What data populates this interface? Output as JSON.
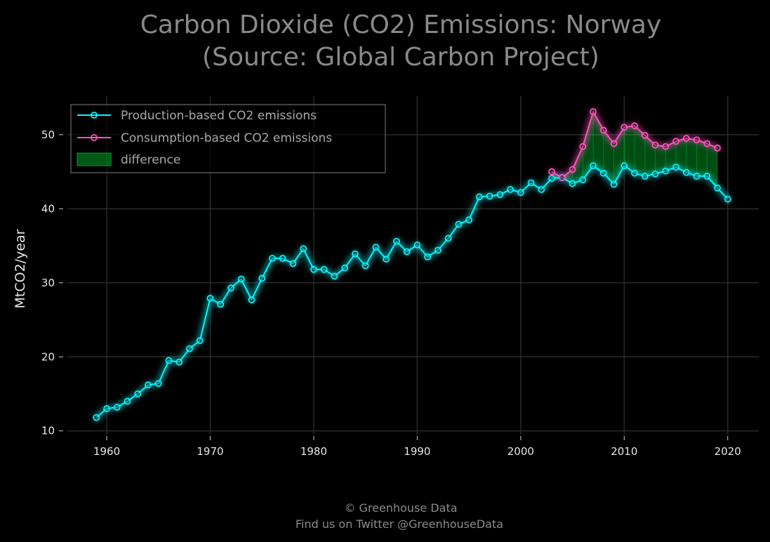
{
  "title_lines": [
    "Carbon Dioxide (CO2) Emissions: Norway",
    "(Source: Global Carbon Project)"
  ],
  "footer_lines": [
    "© Greenhouse Data",
    "Find us on Twitter @GreenhouseData"
  ],
  "colors": {
    "background": "#000000",
    "production": "#08f7fe",
    "consumption": "#fe53bb",
    "difference": "#00ff41",
    "grid": "#2a2a2a",
    "title": "#8a8a8a"
  },
  "chart_data": {
    "type": "line",
    "title": "Carbon Dioxide (CO2) Emissions: Norway\n(Source: Global Carbon Project)",
    "xlabel": "",
    "ylabel": "MtCO2/year",
    "xlim": [
      1956.2,
      2023.0
    ],
    "ylim": [
      9.5,
      55.2
    ],
    "xticks": [
      1960,
      1970,
      1980,
      1990,
      2000,
      2010,
      2020
    ],
    "yticks": [
      10,
      20,
      30,
      40,
      50
    ],
    "grid": true,
    "legend_position": "top-left",
    "series": [
      {
        "name": "Production-based CO2 emissions",
        "x": [
          1959,
          1960,
          1961,
          1962,
          1963,
          1964,
          1965,
          1966,
          1967,
          1968,
          1969,
          1970,
          1971,
          1972,
          1973,
          1974,
          1975,
          1976,
          1977,
          1978,
          1979,
          1980,
          1981,
          1982,
          1983,
          1984,
          1985,
          1986,
          1987,
          1988,
          1989,
          1990,
          1991,
          1992,
          1993,
          1994,
          1995,
          1996,
          1997,
          1998,
          1999,
          2000,
          2001,
          2002,
          2003,
          2004,
          2005,
          2006,
          2007,
          2008,
          2009,
          2010,
          2011,
          2012,
          2013,
          2014,
          2015,
          2016,
          2017,
          2018,
          2019,
          2020
        ],
        "values": [
          11.8,
          13.0,
          13.2,
          14.0,
          15.0,
          16.2,
          16.4,
          19.5,
          19.3,
          21.1,
          22.2,
          27.9,
          27.1,
          29.3,
          30.5,
          27.7,
          30.6,
          33.3,
          33.3,
          32.6,
          34.6,
          31.8,
          31.8,
          30.9,
          32.0,
          33.9,
          32.3,
          34.8,
          33.2,
          35.6,
          34.2,
          35.1,
          33.5,
          34.4,
          36.0,
          37.9,
          38.5,
          41.6,
          41.7,
          41.9,
          42.6,
          42.2,
          43.5,
          42.6,
          44.1,
          44.2,
          43.4,
          43.9,
          45.8,
          44.8,
          43.3,
          45.8,
          44.8,
          44.4,
          44.7,
          45.1,
          45.6,
          44.9,
          44.4,
          44.4,
          42.8,
          41.3
        ]
      },
      {
        "name": "Consumption-based CO2 emissions",
        "x": [
          2003,
          2004,
          2005,
          2006,
          2007,
          2008,
          2009,
          2010,
          2011,
          2012,
          2013,
          2014,
          2015,
          2016,
          2017,
          2018,
          2019
        ],
        "values": [
          45.0,
          44.2,
          45.3,
          48.4,
          53.1,
          50.6,
          48.8,
          51.0,
          51.2,
          49.9,
          48.6,
          48.4,
          49.1,
          49.5,
          49.3,
          48.8,
          48.2
        ]
      }
    ],
    "fill_between": {
      "name": "difference",
      "x_range": [
        2003,
        2019
      ]
    }
  }
}
